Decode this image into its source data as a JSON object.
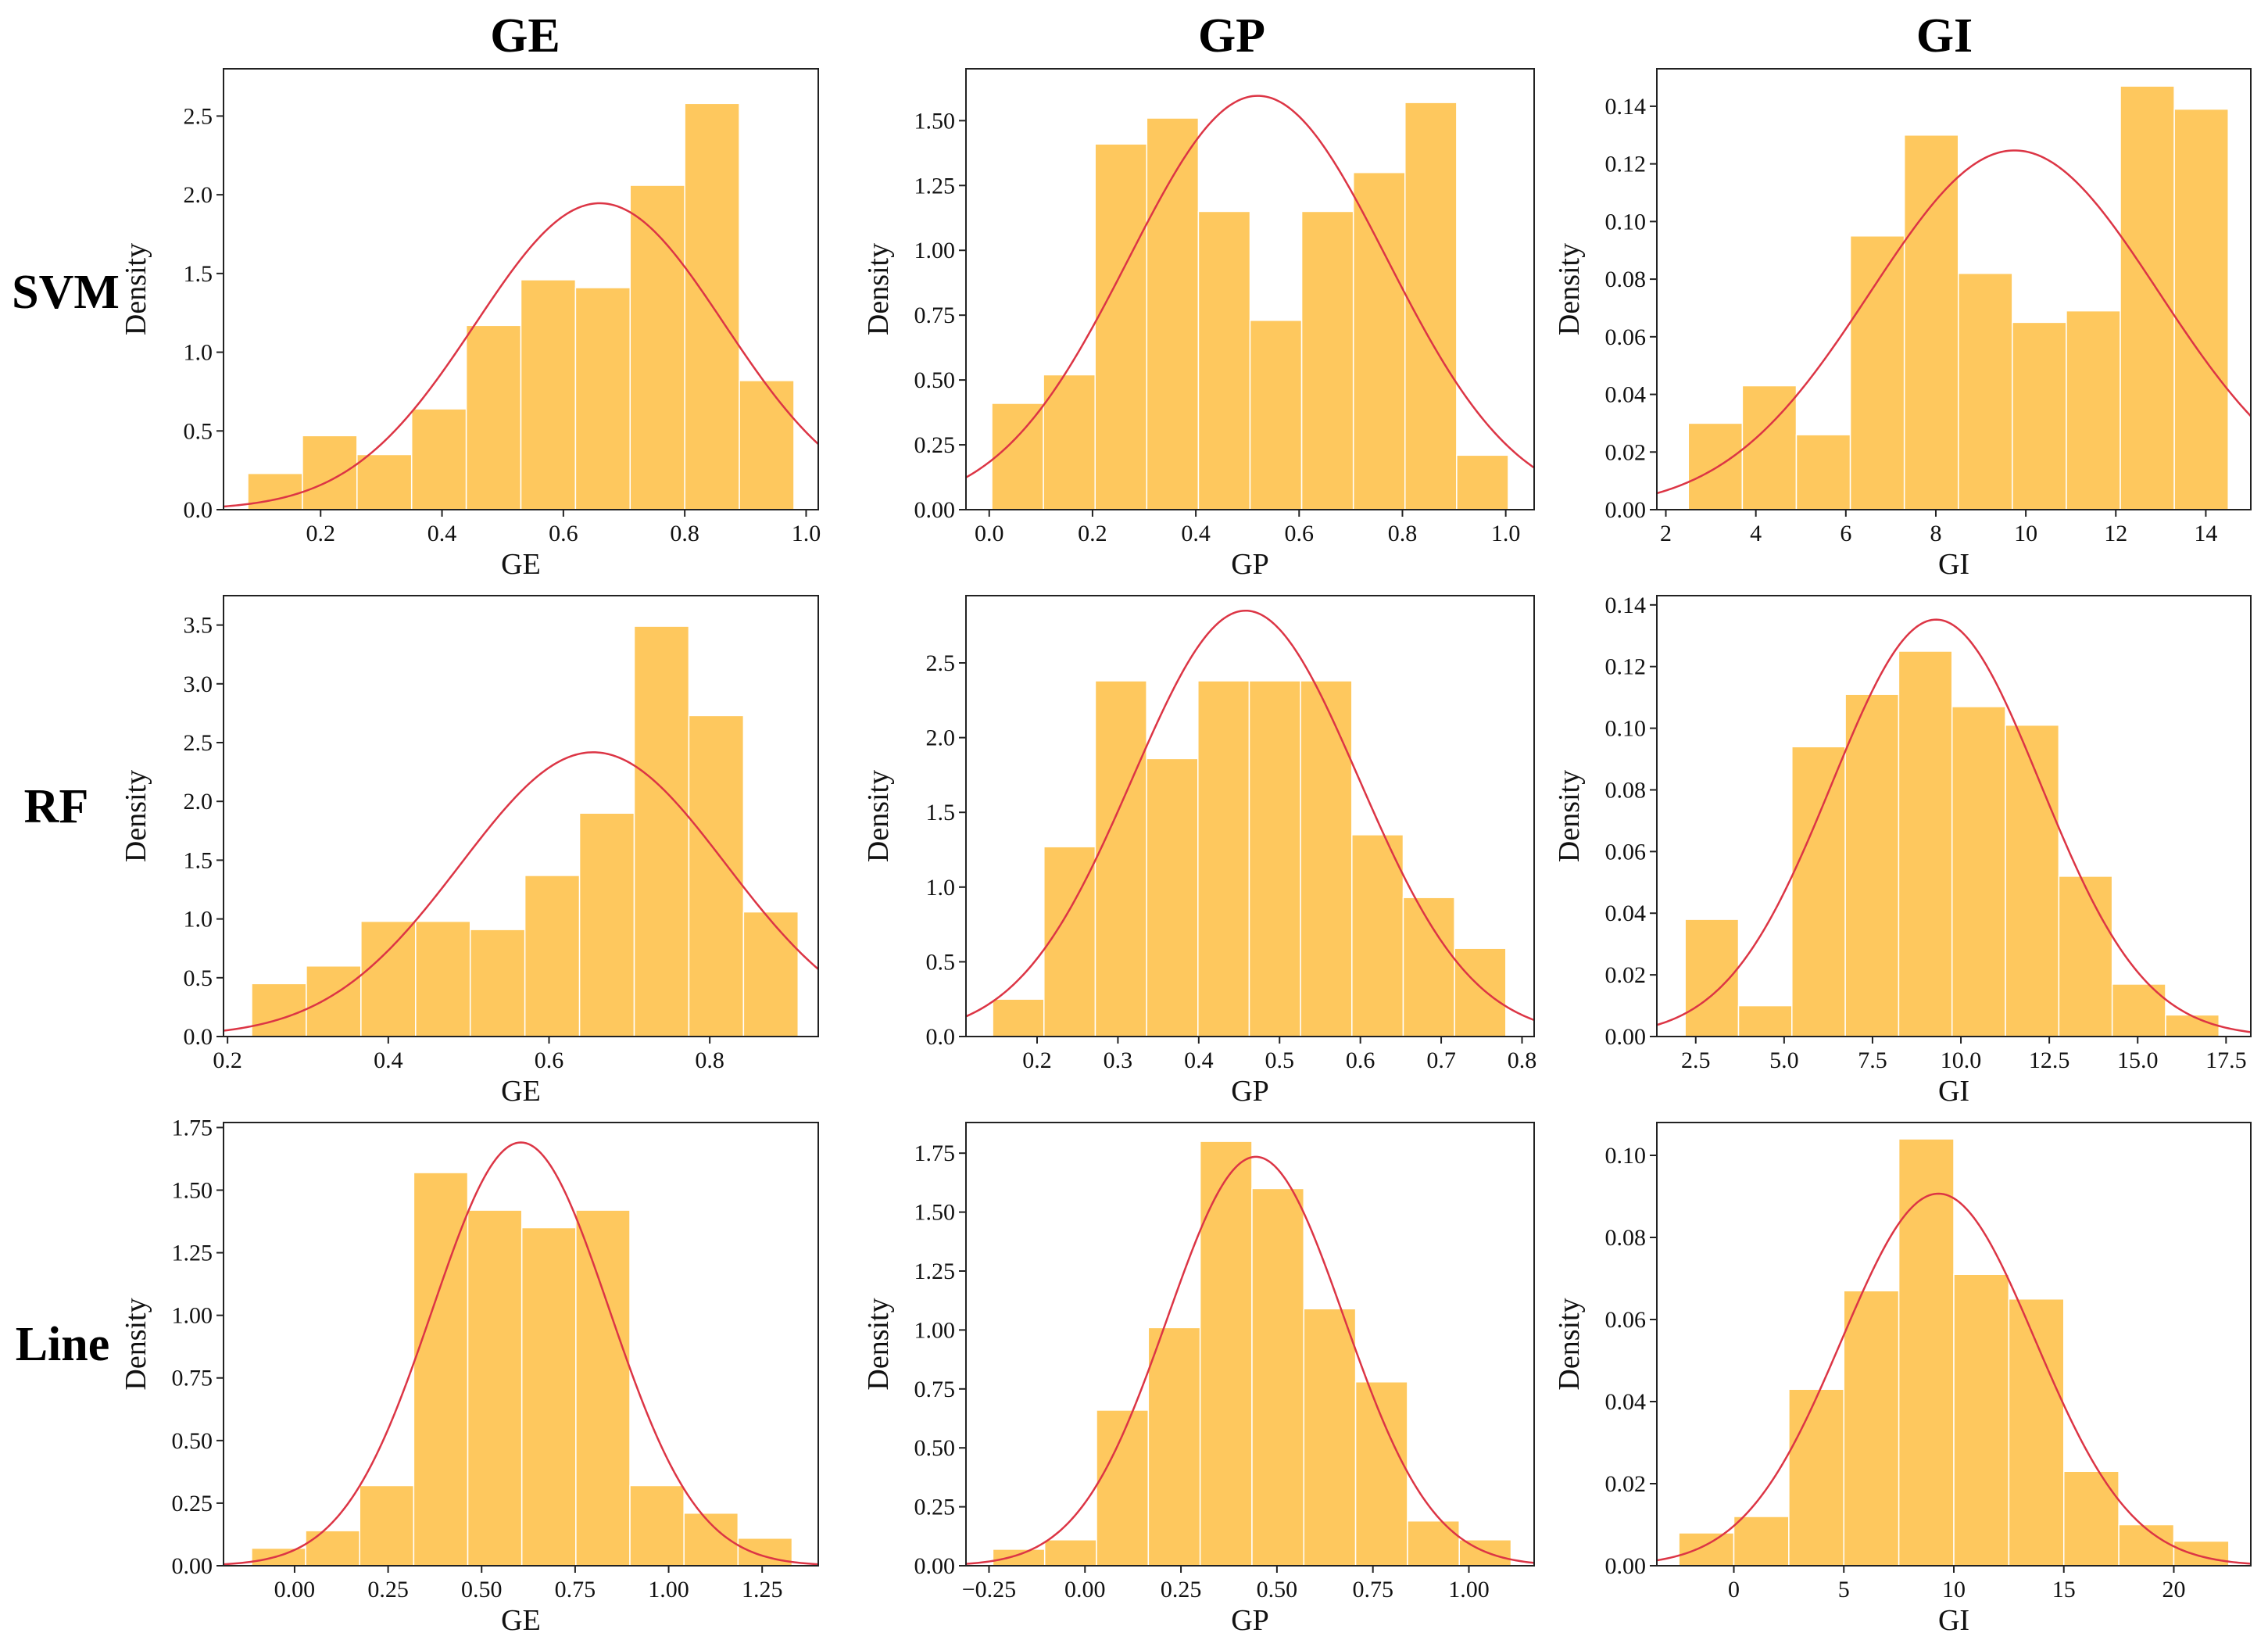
{
  "colors": {
    "bar": "#fec85e",
    "curve": "#dc3545",
    "frame": "#222222"
  },
  "column_titles": [
    "GE",
    "GP",
    "GI"
  ],
  "row_titles": [
    "SVM",
    "RF",
    "Line"
  ],
  "chart_data": [
    {
      "id": "svm-ge",
      "type": "bar",
      "row": 0,
      "col": 0,
      "xlabel": "GE",
      "ylabel": "Density",
      "xlim": [
        0.04,
        1.02
      ],
      "ylim": [
        0,
        2.8
      ],
      "xticks": [
        0.2,
        0.4,
        0.6,
        0.8,
        1.0
      ],
      "xtick_labels": [
        "0.2",
        "0.4",
        "0.6",
        "0.8",
        "1.0"
      ],
      "yticks": [
        0,
        0.5,
        1.0,
        1.5,
        2.0,
        2.5
      ],
      "ytick_labels": [
        "0.0",
        "0.5",
        "1.0",
        "1.5",
        "2.0",
        "2.5"
      ],
      "bin_edges": [
        0.08,
        0.17,
        0.26,
        0.35,
        0.44,
        0.53,
        0.62,
        0.71,
        0.8,
        0.89,
        0.98
      ],
      "values": [
        0.23,
        0.47,
        0.35,
        0.64,
        1.17,
        1.46,
        1.41,
        2.06,
        2.58,
        0.82
      ],
      "normal_fit": {
        "mean": 0.66,
        "std": 0.205
      }
    },
    {
      "id": "svm-gp",
      "type": "bar",
      "row": 0,
      "col": 1,
      "xlabel": "GP",
      "ylabel": "Density",
      "xlim": [
        -0.045,
        1.055
      ],
      "ylim": [
        0,
        1.7
      ],
      "xticks": [
        0.0,
        0.2,
        0.4,
        0.6,
        0.8,
        1.0
      ],
      "xtick_labels": [
        "0.0",
        "0.2",
        "0.4",
        "0.6",
        "0.8",
        "1.0"
      ],
      "yticks": [
        0,
        0.25,
        0.5,
        0.75,
        1.0,
        1.25,
        1.5
      ],
      "ytick_labels": [
        "0.00",
        "0.25",
        "0.50",
        "0.75",
        "1.00",
        "1.25",
        "1.50"
      ],
      "bin_edges": [
        0.005,
        0.105,
        0.205,
        0.305,
        0.405,
        0.505,
        0.605,
        0.705,
        0.805,
        0.905,
        1.005
      ],
      "values": [
        0.41,
        0.52,
        1.41,
        1.51,
        1.15,
        0.73,
        1.15,
        1.3,
        1.57,
        0.21
      ],
      "normal_fit": {
        "mean": 0.52,
        "std": 0.25
      }
    },
    {
      "id": "svm-gi",
      "type": "bar",
      "row": 0,
      "col": 2,
      "xlabel": "GI",
      "ylabel": "Density",
      "xlim": [
        1.8,
        15.0
      ],
      "ylim": [
        0,
        0.153
      ],
      "xticks": [
        2,
        4,
        6,
        8,
        10,
        12,
        14
      ],
      "xtick_labels": [
        "2",
        "4",
        "6",
        "8",
        "10",
        "12",
        "14"
      ],
      "yticks": [
        0,
        0.02,
        0.04,
        0.06,
        0.08,
        0.1,
        0.12,
        0.14
      ],
      "ytick_labels": [
        "0.00",
        "0.02",
        "0.04",
        "0.06",
        "0.08",
        "0.10",
        "0.12",
        "0.14"
      ],
      "bin_edges": [
        2.5,
        3.7,
        4.9,
        6.1,
        7.3,
        8.5,
        9.7,
        10.9,
        12.1,
        13.3,
        14.5
      ],
      "values": [
        0.03,
        0.043,
        0.026,
        0.095,
        0.13,
        0.082,
        0.065,
        0.069,
        0.147,
        0.139
      ],
      "normal_fit": {
        "mean": 9.75,
        "std": 3.2
      }
    },
    {
      "id": "rf-ge",
      "type": "bar",
      "row": 1,
      "col": 0,
      "xlabel": "GE",
      "ylabel": "Density",
      "xlim": [
        0.195,
        0.935
      ],
      "ylim": [
        0,
        3.75
      ],
      "xticks": [
        0.2,
        0.4,
        0.6,
        0.8
      ],
      "xtick_labels": [
        "0.2",
        "0.4",
        "0.6",
        "0.8"
      ],
      "yticks": [
        0,
        0.5,
        1.0,
        1.5,
        2.0,
        2.5,
        3.0,
        3.5
      ],
      "ytick_labels": [
        "0.0",
        "0.5",
        "1.0",
        "1.5",
        "2.0",
        "2.5",
        "3.0",
        "3.5"
      ],
      "bin_edges": [
        0.23,
        0.298,
        0.366,
        0.434,
        0.502,
        0.57,
        0.638,
        0.706,
        0.774,
        0.842,
        0.91
      ],
      "values": [
        0.45,
        0.6,
        0.98,
        0.98,
        0.91,
        1.37,
        1.9,
        3.49,
        2.73,
        1.06
      ],
      "normal_fit": {
        "mean": 0.655,
        "std": 0.165
      }
    },
    {
      "id": "rf-gp",
      "type": "bar",
      "row": 1,
      "col": 1,
      "xlabel": "GP",
      "ylabel": "Density",
      "xlim": [
        0.112,
        0.815
      ],
      "ylim": [
        0,
        2.95
      ],
      "xticks": [
        0.2,
        0.3,
        0.4,
        0.5,
        0.6,
        0.7,
        0.8
      ],
      "xtick_labels": [
        "0.2",
        "0.3",
        "0.4",
        "0.5",
        "0.6",
        "0.7",
        "0.8"
      ],
      "yticks": [
        0,
        0.5,
        1.0,
        1.5,
        2.0,
        2.5
      ],
      "ytick_labels": [
        "0.0",
        "0.5",
        "1.0",
        "1.5",
        "2.0",
        "2.5"
      ],
      "bin_edges": [
        0.145,
        0.2085,
        0.272,
        0.3355,
        0.399,
        0.4625,
        0.526,
        0.5895,
        0.653,
        0.7165,
        0.78
      ],
      "values": [
        0.25,
        1.27,
        2.38,
        1.86,
        2.38,
        2.38,
        2.38,
        1.35,
        0.93,
        0.59
      ],
      "normal_fit": {
        "mean": 0.458,
        "std": 0.14
      }
    },
    {
      "id": "rf-gi",
      "type": "bar",
      "row": 1,
      "col": 2,
      "xlabel": "GI",
      "ylabel": "Density",
      "xlim": [
        1.4,
        18.2
      ],
      "ylim": [
        0,
        0.143
      ],
      "xticks": [
        2.5,
        5.0,
        7.5,
        10.0,
        12.5,
        15.0,
        17.5
      ],
      "xtick_labels": [
        "2.5",
        "5.0",
        "7.5",
        "10.0",
        "12.5",
        "15.0",
        "17.5"
      ],
      "yticks": [
        0,
        0.02,
        0.04,
        0.06,
        0.08,
        0.1,
        0.12,
        0.14
      ],
      "ytick_labels": [
        "0.00",
        "0.02",
        "0.04",
        "0.06",
        "0.08",
        "0.10",
        "0.12",
        "0.14"
      ],
      "bin_edges": [
        2.2,
        3.71,
        5.22,
        6.73,
        8.24,
        9.75,
        11.26,
        12.77,
        14.28,
        15.79,
        17.3
      ],
      "values": [
        0.038,
        0.01,
        0.094,
        0.111,
        0.125,
        0.107,
        0.101,
        0.052,
        0.017,
        0.007
      ],
      "normal_fit": {
        "mean": 9.3,
        "std": 2.95
      }
    },
    {
      "id": "line-ge",
      "type": "bar",
      "row": 2,
      "col": 0,
      "xlabel": "GE",
      "ylabel": "Density",
      "xlim": [
        -0.19,
        1.4
      ],
      "ylim": [
        0,
        1.77
      ],
      "xticks": [
        0.0,
        0.25,
        0.5,
        0.75,
        1.0,
        1.25
      ],
      "xtick_labels": [
        "0.00",
        "0.25",
        "0.50",
        "0.75",
        "1.00",
        "1.25"
      ],
      "yticks": [
        0,
        0.25,
        0.5,
        0.75,
        1.0,
        1.25,
        1.5,
        1.75
      ],
      "ytick_labels": [
        "0.00",
        "0.25",
        "0.50",
        "0.75",
        "1.00",
        "1.25",
        "1.50",
        "1.75"
      ],
      "bin_edges": [
        -0.115,
        0.0295,
        0.174,
        0.3185,
        0.463,
        0.6075,
        0.752,
        0.8965,
        1.041,
        1.1855,
        1.33
      ],
      "values": [
        0.07,
        0.14,
        0.32,
        1.57,
        1.42,
        1.35,
        1.42,
        0.32,
        0.21,
        0.11
      ],
      "normal_fit": {
        "mean": 0.605,
        "std": 0.236
      }
    },
    {
      "id": "line-gp",
      "type": "bar",
      "row": 2,
      "col": 1,
      "xlabel": "GP",
      "ylabel": "Density",
      "xlim": [
        -0.31,
        1.17
      ],
      "ylim": [
        0,
        1.88
      ],
      "xticks": [
        -0.25,
        0.0,
        0.25,
        0.5,
        0.75,
        1.0
      ],
      "xtick_labels": [
        "−0.25",
        "0.00",
        "0.25",
        "0.50",
        "0.75",
        "1.00"
      ],
      "yticks": [
        0,
        0.25,
        0.5,
        0.75,
        1.0,
        1.25,
        1.5,
        1.75
      ],
      "ytick_labels": [
        "0.00",
        "0.25",
        "0.50",
        "0.75",
        "1.00",
        "1.25",
        "1.50",
        "1.75"
      ],
      "bin_edges": [
        -0.24,
        -0.105,
        0.03,
        0.165,
        0.3,
        0.435,
        0.57,
        0.705,
        0.84,
        0.975,
        1.11
      ],
      "values": [
        0.07,
        0.11,
        0.66,
        1.01,
        1.8,
        1.6,
        1.09,
        0.78,
        0.19,
        0.11
      ],
      "normal_fit": {
        "mean": 0.445,
        "std": 0.23
      }
    },
    {
      "id": "line-gi",
      "type": "bar",
      "row": 2,
      "col": 2,
      "xlabel": "GI",
      "ylabel": "Density",
      "xlim": [
        -3.5,
        23.5
      ],
      "ylim": [
        0,
        0.108
      ],
      "xticks": [
        0,
        5,
        10,
        15,
        20
      ],
      "xtick_labels": [
        "0",
        "5",
        "10",
        "15",
        "20"
      ],
      "yticks": [
        0,
        0.02,
        0.04,
        0.06,
        0.08,
        0.1
      ],
      "ytick_labels": [
        "0.00",
        "0.02",
        "0.04",
        "0.06",
        "0.08",
        "0.10"
      ],
      "bin_edges": [
        -2.5,
        0.0,
        2.5,
        5.0,
        7.5,
        10.0,
        12.5,
        15.0,
        17.5,
        20.0,
        22.5
      ],
      "values": [
        0.008,
        0.012,
        0.043,
        0.067,
        0.104,
        0.071,
        0.065,
        0.023,
        0.01,
        0.006
      ],
      "normal_fit": {
        "mean": 9.3,
        "std": 4.4
      }
    }
  ]
}
